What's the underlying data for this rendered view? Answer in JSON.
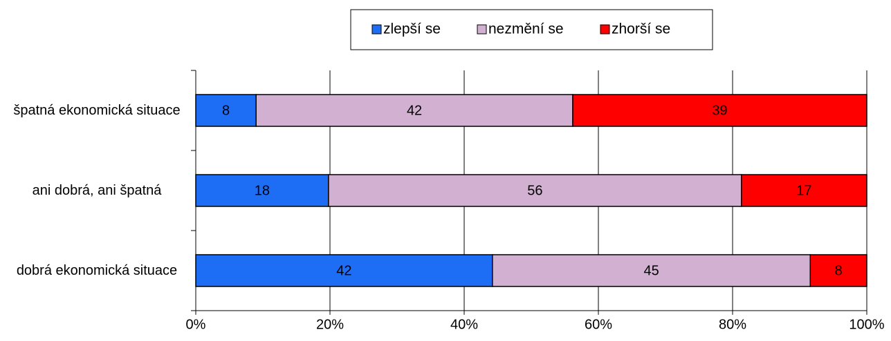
{
  "chart_data": {
    "type": "bar",
    "orientation": "horizontal",
    "stacked_percent": true,
    "categories": [
      "špatná ekonomická situace",
      "ani dobrá, ani špatná",
      "dobrá ekonomická situace"
    ],
    "series": [
      {
        "name": "zlepší se",
        "color": "#1e6ef5",
        "values": [
          8,
          18,
          42
        ]
      },
      {
        "name": "nezmění se",
        "color": "#d2b0d2",
        "values": [
          42,
          56,
          45
        ]
      },
      {
        "name": "zhorší se",
        "color": "#ff0000",
        "values": [
          39,
          17,
          8
        ]
      }
    ],
    "xlim": [
      0,
      100
    ],
    "xticks": [
      {
        "value": 0,
        "label": "0%"
      },
      {
        "value": 20,
        "label": "20%"
      },
      {
        "value": 40,
        "label": "40%"
      },
      {
        "value": 60,
        "label": "60%"
      },
      {
        "value": 80,
        "label": "80%"
      },
      {
        "value": 100,
        "label": "100%"
      }
    ],
    "grid": true,
    "legend": "top"
  }
}
